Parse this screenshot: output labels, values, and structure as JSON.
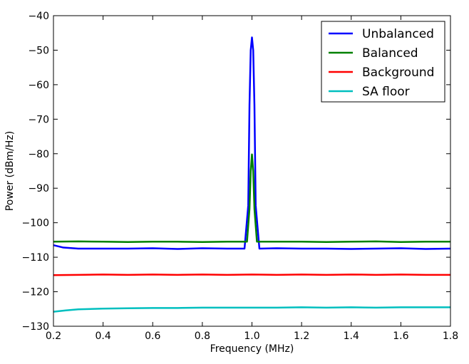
{
  "chart_data": {
    "type": "line",
    "title": "",
    "xlabel": "Frequency (MHz)",
    "ylabel": "Power (dBm/Hz)",
    "xlim": [
      0.2,
      1.8
    ],
    "ylim": [
      -130,
      -40
    ],
    "x_ticks": [
      0.2,
      0.4,
      0.6,
      0.8,
      1.0,
      1.2,
      1.4,
      1.6,
      1.8
    ],
    "x_tick_labels": [
      "0.2",
      "0.4",
      "0.6",
      "0.8",
      "1.0",
      "1.2",
      "1.4",
      "1.6",
      "1.8"
    ],
    "y_ticks": [
      -130,
      -120,
      -110,
      -100,
      -90,
      -80,
      -70,
      -60,
      -50,
      -40
    ],
    "y_tick_labels": [
      "−130",
      "−120",
      "−110",
      "−100",
      "−90",
      "−80",
      "−70",
      "−60",
      "−50",
      "−40"
    ],
    "grid": false,
    "legend": "top-right",
    "series": [
      {
        "name": "Unbalanced",
        "color": "#0000ff",
        "x": [
          0.2,
          0.24,
          0.3,
          0.4,
          0.5,
          0.6,
          0.7,
          0.8,
          0.9,
          0.97,
          0.985,
          0.99,
          0.995,
          1.0,
          1.005,
          1.01,
          1.015,
          1.03,
          1.1,
          1.2,
          1.3,
          1.4,
          1.5,
          1.6,
          1.7,
          1.8
        ],
        "values": [
          -106.5,
          -107.2,
          -107.5,
          -107.5,
          -107.5,
          -107.4,
          -107.6,
          -107.4,
          -107.5,
          -107.5,
          -95,
          -66,
          -50,
          -46.3,
          -50,
          -66,
          -95,
          -107.5,
          -107.4,
          -107.5,
          -107.5,
          -107.6,
          -107.5,
          -107.4,
          -107.6,
          -107.5
        ]
      },
      {
        "name": "Balanced",
        "color": "#008000",
        "x": [
          0.2,
          0.3,
          0.4,
          0.5,
          0.6,
          0.7,
          0.8,
          0.9,
          0.98,
          0.99,
          0.995,
          1.0,
          1.005,
          1.01,
          1.02,
          1.1,
          1.2,
          1.3,
          1.4,
          1.5,
          1.6,
          1.7,
          1.8
        ],
        "values": [
          -105.5,
          -105.4,
          -105.5,
          -105.6,
          -105.5,
          -105.5,
          -105.6,
          -105.5,
          -105.5,
          -96,
          -85,
          -80.2,
          -85,
          -96,
          -105.5,
          -105.5,
          -105.5,
          -105.6,
          -105.5,
          -105.4,
          -105.6,
          -105.5,
          -105.5
        ]
      },
      {
        "name": "Background",
        "color": "#ff0000",
        "x": [
          0.2,
          0.3,
          0.4,
          0.5,
          0.6,
          0.7,
          0.8,
          0.9,
          1.0,
          1.1,
          1.2,
          1.3,
          1.4,
          1.5,
          1.6,
          1.7,
          1.8
        ],
        "values": [
          -115.2,
          -115.1,
          -115.0,
          -115.1,
          -115.0,
          -115.1,
          -115.0,
          -115.1,
          -115.0,
          -115.1,
          -115.0,
          -115.1,
          -115.0,
          -115.1,
          -115.0,
          -115.1,
          -115.1
        ]
      },
      {
        "name": "SA floor",
        "color": "#00bfbf",
        "x": [
          0.2,
          0.25,
          0.3,
          0.4,
          0.5,
          0.6,
          0.7,
          0.8,
          0.9,
          1.0,
          1.1,
          1.2,
          1.3,
          1.4,
          1.5,
          1.6,
          1.7,
          1.8
        ],
        "values": [
          -125.8,
          -125.4,
          -125.1,
          -124.9,
          -124.8,
          -124.7,
          -124.7,
          -124.6,
          -124.6,
          -124.6,
          -124.6,
          -124.5,
          -124.6,
          -124.5,
          -124.6,
          -124.5,
          -124.5,
          -124.5
        ]
      }
    ]
  }
}
